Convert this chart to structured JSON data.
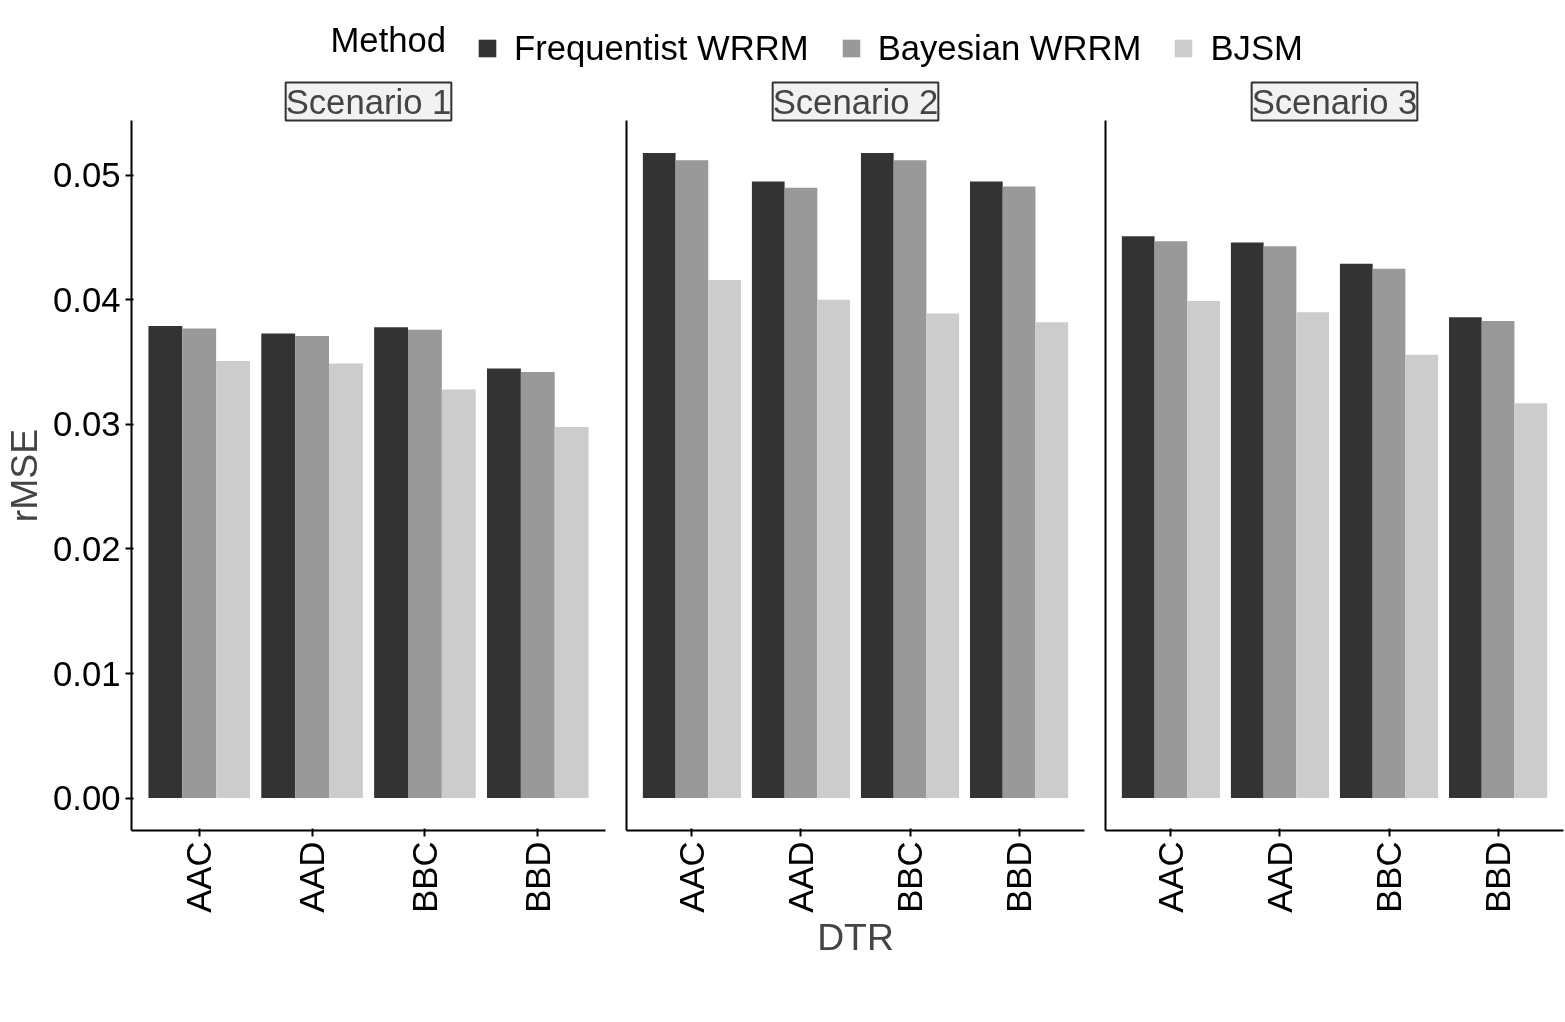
{
  "chart_data": [
    {
      "type": "bar",
      "title": "Scenario 1",
      "ylabel": "rMSE",
      "legend_title": "Method",
      "legend": "top",
      "categories": [
        "AAC",
        "AAD",
        "BBC",
        "BBD"
      ],
      "ylim": [
        -0.0026,
        0.0544
      ],
      "yticks": [
        {
          "value": 0,
          "label": "0.00"
        },
        {
          "value": 0.01,
          "label": "0.01"
        },
        {
          "value": 0.02,
          "label": "0.02"
        },
        {
          "value": 0.03,
          "label": "0.03"
        },
        {
          "value": 0.04,
          "label": "0.04"
        },
        {
          "value": 0.05,
          "label": "0.05"
        }
      ],
      "grid": false,
      "series": [
        {
          "name": "Frequentist WRRM",
          "color": "#333333",
          "values": [
            0.0379,
            0.0373,
            0.0378,
            0.0345
          ]
        },
        {
          "name": "Bayesian WRRM",
          "color": "#999999",
          "values": [
            0.0377,
            0.0371,
            0.0376,
            0.0342
          ]
        },
        {
          "name": "BJSM",
          "color": "#cccccc",
          "values": [
            0.0351,
            0.0349,
            0.0328,
            0.0298
          ]
        }
      ]
    },
    {
      "type": "bar",
      "title": "Scenario 2",
      "xlabel": "DTR",
      "categories": [
        "AAC",
        "AAD",
        "BBC",
        "BBD"
      ],
      "ylim": [
        -0.0026,
        0.0544
      ],
      "yticks": [
        {
          "value": 0,
          "label": null
        },
        {
          "value": 0.01,
          "label": null
        },
        {
          "value": 0.02,
          "label": null
        },
        {
          "value": 0.03,
          "label": null
        },
        {
          "value": 0.04,
          "label": null
        },
        {
          "value": 0.05,
          "label": null
        }
      ],
      "tick_labels": "x",
      "grid": false,
      "series": [
        {
          "color": "#333333",
          "values": [
            0.0518,
            0.0495,
            0.0518,
            0.0495
          ]
        },
        {
          "color": "#999999",
          "values": [
            0.0512,
            0.049,
            0.0512,
            0.0491
          ]
        },
        {
          "color": "#cccccc",
          "values": [
            0.0416,
            0.04,
            0.0389,
            0.0382
          ]
        }
      ]
    },
    {
      "type": "bar",
      "title": "Scenario 3",
      "categories": [
        "AAC",
        "AAD",
        "BBC",
        "BBD"
      ],
      "ylim": [
        -0.0026,
        0.0544
      ],
      "yticks": [
        {
          "value": 0,
          "label": null
        },
        {
          "value": 0.01,
          "label": null
        },
        {
          "value": 0.02,
          "label": null
        },
        {
          "value": 0.03,
          "label": null
        },
        {
          "value": 0.04,
          "label": null
        },
        {
          "value": 0.05,
          "label": null
        }
      ],
      "tick_labels": "x",
      "grid": false,
      "series": [
        {
          "color": "#333333",
          "values": [
            0.0451,
            0.0446,
            0.0429,
            0.0386
          ]
        },
        {
          "color": "#999999",
          "values": [
            0.0447,
            0.0443,
            0.0425,
            0.0383
          ]
        },
        {
          "color": "#cccccc",
          "values": [
            0.0399,
            0.039,
            0.0356,
            0.0317
          ]
        }
      ]
    }
  ]
}
